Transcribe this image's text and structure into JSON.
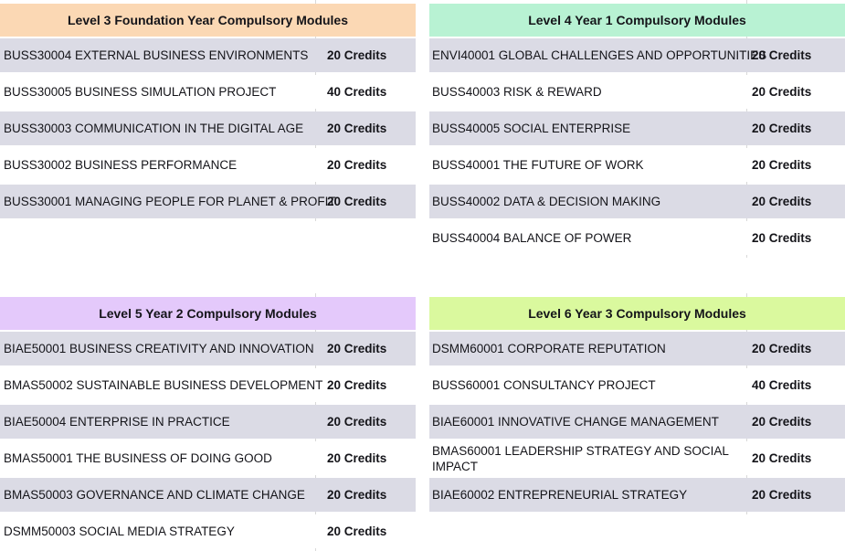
{
  "colors": {
    "level3_header": "#fbd8b4",
    "level4_header": "#b8f2d3",
    "level5_header": "#e4c9fb",
    "level6_header": "#daf99e",
    "row_stripe": "#dbdbe5",
    "gridline": "#d8d8d8"
  },
  "tables": [
    {
      "title": "Level 3 Foundation Year Compulsory Modules",
      "rows": [
        {
          "name": "BUSS30004 EXTERNAL BUSINESS ENVIRONMENTS",
          "credits": "20 Credits"
        },
        {
          "name": "BUSS30005 BUSINESS SIMULATION PROJECT",
          "credits": "40 Credits"
        },
        {
          "name": "BUSS30003 COMMUNICATION IN THE DIGITAL AGE",
          "credits": "20 Credits"
        },
        {
          "name": "BUSS30002 BUSINESS PERFORMANCE",
          "credits": "20 Credits"
        },
        {
          "name": "BUSS30001 MANAGING PEOPLE FOR PLANET & PROFIT",
          "credits": "20 Credits"
        }
      ]
    },
    {
      "title": "Level 4 Year 1 Compulsory Modules",
      "rows": [
        {
          "name": "ENVI40001 GLOBAL CHALLENGES AND OPPORTUNITIES",
          "credits": "20 Credits"
        },
        {
          "name": "BUSS40003 RISK & REWARD",
          "credits": "20 Credits"
        },
        {
          "name": "BUSS40005 SOCIAL ENTERPRISE",
          "credits": "20 Credits"
        },
        {
          "name": "BUSS40001 THE FUTURE OF WORK",
          "credits": "20 Credits"
        },
        {
          "name": "BUSS40002 DATA & DECISION MAKING",
          "credits": "20 Credits"
        },
        {
          "name": "BUSS40004 BALANCE OF POWER",
          "credits": "20 Credits"
        }
      ]
    },
    {
      "title": "Level 5 Year 2 Compulsory Modules",
      "rows": [
        {
          "name": "BIAE50001 BUSINESS CREATIVITY AND INNOVATION",
          "credits": "20 Credits"
        },
        {
          "name": "BMAS50002 SUSTAINABLE BUSINESS DEVELOPMENT",
          "credits": "20 Credits"
        },
        {
          "name": "BIAE50004 ENTERPRISE IN PRACTICE",
          "credits": "20 Credits"
        },
        {
          "name": "BMAS50001 THE BUSINESS OF DOING GOOD",
          "credits": "20 Credits"
        },
        {
          "name": "BMAS50003 GOVERNANCE AND CLIMATE CHANGE",
          "credits": "20 Credits"
        },
        {
          "name": "DSMM50003 SOCIAL MEDIA STRATEGY",
          "credits": "20 Credits"
        }
      ]
    },
    {
      "title": "Level 6 Year 3 Compulsory Modules",
      "rows": [
        {
          "name": "DSMM60001 CORPORATE REPUTATION",
          "credits": "20 Credits"
        },
        {
          "name": "BUSS60001 CONSULTANCY PROJECT",
          "credits": "40 Credits"
        },
        {
          "name": "BIAE60001 INNOVATIVE CHANGE MANAGEMENT",
          "credits": "20 Credits"
        },
        {
          "name": "BMAS60001 LEADERSHIP STRATEGY AND SOCIAL IMPACT",
          "credits": "20 Credits"
        },
        {
          "name": "BIAE60002 ENTREPRENEURIAL STRATEGY",
          "credits": "20 Credits"
        }
      ]
    }
  ]
}
